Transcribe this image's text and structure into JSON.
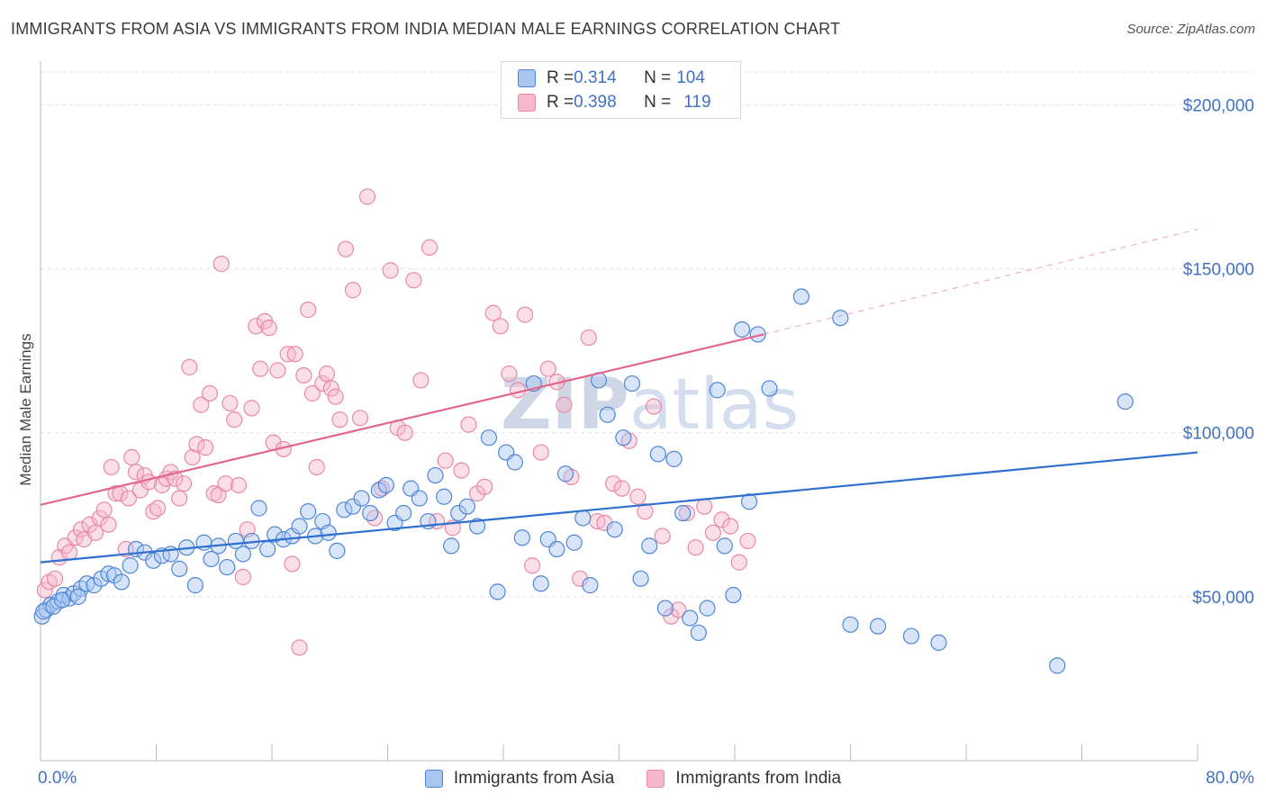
{
  "title": "IMMIGRANTS FROM ASIA VS IMMIGRANTS FROM INDIA MEDIAN MALE EARNINGS CORRELATION CHART",
  "source": "Source: ZipAtlas.com",
  "watermark": {
    "zip": "ZIP",
    "atlas": "atlas"
  },
  "colors": {
    "asia_fill": "#a9c6f0",
    "asia_stroke": "#4f86d8",
    "asia_line": "#2f6fd0",
    "india_fill": "#f6b8cc",
    "india_stroke": "#e889a8",
    "india_line": "#e2668f",
    "tick_text": "#3f72c4",
    "grid": "#e2e2e2"
  },
  "legend_top": [
    {
      "r_label": "R = ",
      "r_value": "0.314",
      "n_label": "N = ",
      "n_value": "104"
    },
    {
      "r_label": "R = ",
      "r_value": "0.398",
      "n_label": "N = ",
      "n_value": "119"
    }
  ],
  "chart_data": {
    "type": "scatter",
    "title": "IMMIGRANTS FROM ASIA VS IMMIGRANTS FROM INDIA MEDIAN MALE EARNINGS CORRELATION CHART",
    "xlabel": "",
    "ylabel": "Median Male Earnings",
    "xlim": [
      0,
      80
    ],
    "ylim": [
      0,
      210000
    ],
    "x_tick_labels": [
      "0.0%",
      "80.0%"
    ],
    "y_ticks": [
      50000,
      100000,
      150000,
      200000
    ],
    "y_tick_labels": [
      "$50,000",
      "$100,000",
      "$150,000",
      "$200,000"
    ],
    "grid": true,
    "legend_position": "bottom",
    "series": [
      {
        "name": "Immigrants from Asia",
        "trend": {
          "x0": 0,
          "y0": 60500,
          "x1": 80,
          "y1": 94000,
          "dashed_to": null
        },
        "points": [
          [
            0.1,
            44000
          ],
          [
            0.4,
            46000
          ],
          [
            0.7,
            47500
          ],
          [
            1.2,
            48500
          ],
          [
            1.6,
            50500
          ],
          [
            2.0,
            49500
          ],
          [
            2.3,
            51000
          ],
          [
            2.8,
            52500
          ],
          [
            3.2,
            54000
          ],
          [
            3.7,
            53500
          ],
          [
            4.2,
            55500
          ],
          [
            4.7,
            57000
          ],
          [
            5.1,
            56500
          ],
          [
            5.6,
            54500
          ],
          [
            6.2,
            59500
          ],
          [
            6.6,
            64500
          ],
          [
            7.2,
            63500
          ],
          [
            7.8,
            61000
          ],
          [
            8.4,
            62500
          ],
          [
            9.0,
            63000
          ],
          [
            9.6,
            58500
          ],
          [
            10.1,
            65000
          ],
          [
            10.7,
            53500
          ],
          [
            11.3,
            66500
          ],
          [
            11.8,
            61500
          ],
          [
            12.3,
            65500
          ],
          [
            12.9,
            59000
          ],
          [
            13.5,
            67000
          ],
          [
            14.0,
            63000
          ],
          [
            14.6,
            67000
          ],
          [
            15.1,
            77000
          ],
          [
            15.7,
            64500
          ],
          [
            16.2,
            69000
          ],
          [
            16.8,
            67500
          ],
          [
            17.4,
            68500
          ],
          [
            17.9,
            71500
          ],
          [
            18.5,
            76000
          ],
          [
            19.0,
            68500
          ],
          [
            19.5,
            73000
          ],
          [
            19.9,
            69500
          ],
          [
            20.5,
            64000
          ],
          [
            21.0,
            76500
          ],
          [
            21.6,
            77500
          ],
          [
            22.2,
            80000
          ],
          [
            22.8,
            75500
          ],
          [
            23.4,
            82500
          ],
          [
            23.9,
            84000
          ],
          [
            24.5,
            72500
          ],
          [
            25.1,
            75500
          ],
          [
            25.6,
            83000
          ],
          [
            26.2,
            80000
          ],
          [
            26.8,
            73000
          ],
          [
            27.3,
            87000
          ],
          [
            27.9,
            80500
          ],
          [
            28.4,
            65500
          ],
          [
            28.9,
            75500
          ],
          [
            29.5,
            77500
          ],
          [
            30.2,
            71500
          ],
          [
            31.0,
            98500
          ],
          [
            31.6,
            51500
          ],
          [
            32.2,
            94000
          ],
          [
            32.8,
            91000
          ],
          [
            33.3,
            68000
          ],
          [
            34.1,
            115000
          ],
          [
            34.6,
            54000
          ],
          [
            35.1,
            67500
          ],
          [
            35.7,
            64500
          ],
          [
            36.3,
            87500
          ],
          [
            36.9,
            66500
          ],
          [
            37.5,
            74000
          ],
          [
            38.0,
            53500
          ],
          [
            38.6,
            116000
          ],
          [
            39.2,
            105500
          ],
          [
            39.7,
            70500
          ],
          [
            40.3,
            98500
          ],
          [
            40.9,
            115000
          ],
          [
            41.5,
            55500
          ],
          [
            42.1,
            65500
          ],
          [
            42.7,
            93500
          ],
          [
            43.2,
            46500
          ],
          [
            43.8,
            92000
          ],
          [
            44.4,
            75500
          ],
          [
            44.9,
            43500
          ],
          [
            45.5,
            39000
          ],
          [
            46.1,
            46500
          ],
          [
            46.8,
            113000
          ],
          [
            47.3,
            65500
          ],
          [
            47.9,
            50500
          ],
          [
            48.5,
            131500
          ],
          [
            49.0,
            79000
          ],
          [
            49.6,
            130000
          ],
          [
            50.4,
            113500
          ],
          [
            52.6,
            141500
          ],
          [
            55.3,
            135000
          ],
          [
            56.0,
            41500
          ],
          [
            57.9,
            41000
          ],
          [
            60.2,
            38000
          ],
          [
            62.1,
            36000
          ],
          [
            70.3,
            29000
          ],
          [
            75.0,
            109500
          ],
          [
            0.2,
            45500
          ],
          [
            0.9,
            47000
          ],
          [
            1.5,
            49000
          ],
          [
            2.6,
            50000
          ]
        ]
      },
      {
        "name": "Immigrants from India",
        "trend": {
          "x0": 0,
          "y0": 78000,
          "x1": 50,
          "y1": 130000,
          "dashed_to": {
            "x": 80,
            "y": 162000
          }
        },
        "points": [
          [
            0.3,
            52000
          ],
          [
            0.6,
            54500
          ],
          [
            1.0,
            55500
          ],
          [
            1.3,
            62000
          ],
          [
            1.7,
            65500
          ],
          [
            2.0,
            63500
          ],
          [
            2.4,
            68000
          ],
          [
            2.8,
            70500
          ],
          [
            3.0,
            67500
          ],
          [
            3.4,
            72000
          ],
          [
            3.8,
            69500
          ],
          [
            4.1,
            74000
          ],
          [
            4.4,
            76500
          ],
          [
            4.7,
            72000
          ],
          [
            4.9,
            89500
          ],
          [
            5.2,
            81500
          ],
          [
            5.5,
            81500
          ],
          [
            5.9,
            64500
          ],
          [
            6.1,
            80000
          ],
          [
            6.3,
            92500
          ],
          [
            6.6,
            88000
          ],
          [
            6.9,
            82500
          ],
          [
            7.2,
            87000
          ],
          [
            7.5,
            85000
          ],
          [
            7.8,
            76000
          ],
          [
            8.1,
            77000
          ],
          [
            8.4,
            84000
          ],
          [
            8.7,
            86000
          ],
          [
            9.0,
            88000
          ],
          [
            9.3,
            86000
          ],
          [
            9.6,
            80000
          ],
          [
            9.9,
            84500
          ],
          [
            10.3,
            120000
          ],
          [
            10.5,
            92500
          ],
          [
            10.8,
            96500
          ],
          [
            11.1,
            108500
          ],
          [
            11.4,
            95500
          ],
          [
            11.7,
            112000
          ],
          [
            12.0,
            81500
          ],
          [
            12.3,
            81000
          ],
          [
            12.5,
            151500
          ],
          [
            12.8,
            84500
          ],
          [
            13.1,
            109000
          ],
          [
            13.4,
            104000
          ],
          [
            13.7,
            84000
          ],
          [
            14.0,
            56000
          ],
          [
            14.3,
            70500
          ],
          [
            14.6,
            107500
          ],
          [
            14.9,
            132500
          ],
          [
            15.2,
            119500
          ],
          [
            15.5,
            134000
          ],
          [
            15.8,
            132000
          ],
          [
            16.1,
            97000
          ],
          [
            16.4,
            119000
          ],
          [
            16.8,
            95000
          ],
          [
            17.1,
            124000
          ],
          [
            17.4,
            60000
          ],
          [
            17.6,
            124000
          ],
          [
            17.9,
            34500
          ],
          [
            18.2,
            117500
          ],
          [
            18.5,
            137500
          ],
          [
            18.8,
            112000
          ],
          [
            19.1,
            89500
          ],
          [
            19.5,
            115000
          ],
          [
            19.8,
            118000
          ],
          [
            20.1,
            113500
          ],
          [
            20.4,
            111000
          ],
          [
            20.7,
            104000
          ],
          [
            21.1,
            156000
          ],
          [
            21.6,
            143500
          ],
          [
            22.1,
            104500
          ],
          [
            22.6,
            172000
          ],
          [
            23.1,
            74000
          ],
          [
            23.6,
            83000
          ],
          [
            24.2,
            149500
          ],
          [
            24.7,
            101500
          ],
          [
            25.2,
            100000
          ],
          [
            25.8,
            146500
          ],
          [
            26.3,
            116000
          ],
          [
            26.9,
            156500
          ],
          [
            27.4,
            73000
          ],
          [
            28.0,
            91500
          ],
          [
            28.5,
            71000
          ],
          [
            29.1,
            88500
          ],
          [
            29.6,
            102500
          ],
          [
            30.2,
            81500
          ],
          [
            30.7,
            83500
          ],
          [
            31.3,
            136500
          ],
          [
            31.8,
            132500
          ],
          [
            32.4,
            118000
          ],
          [
            33.0,
            113000
          ],
          [
            33.5,
            136000
          ],
          [
            34.0,
            59500
          ],
          [
            34.6,
            94000
          ],
          [
            35.1,
            119500
          ],
          [
            35.7,
            115500
          ],
          [
            36.2,
            108500
          ],
          [
            36.7,
            86500
          ],
          [
            37.3,
            55500
          ],
          [
            37.9,
            129000
          ],
          [
            38.5,
            73000
          ],
          [
            39.0,
            72500
          ],
          [
            39.6,
            84500
          ],
          [
            40.2,
            83000
          ],
          [
            40.7,
            97500
          ],
          [
            41.3,
            80500
          ],
          [
            41.8,
            76000
          ],
          [
            42.4,
            108000
          ],
          [
            43.0,
            68500
          ],
          [
            43.6,
            44000
          ],
          [
            44.1,
            46000
          ],
          [
            44.7,
            75500
          ],
          [
            45.3,
            65000
          ],
          [
            45.9,
            77500
          ],
          [
            46.5,
            69500
          ],
          [
            47.1,
            73500
          ],
          [
            47.7,
            71500
          ],
          [
            48.3,
            60500
          ],
          [
            48.9,
            67000
          ]
        ]
      }
    ]
  },
  "legend_bottom": [
    {
      "label": "Immigrants from Asia"
    },
    {
      "label": "Immigrants from India"
    }
  ]
}
